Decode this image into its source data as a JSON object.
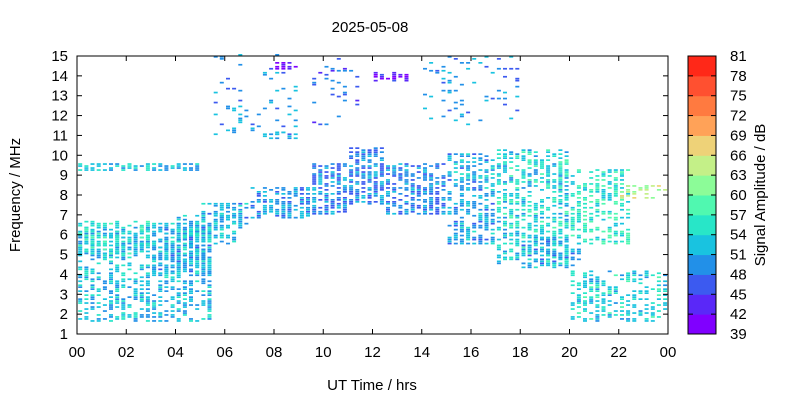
{
  "chart_data": {
    "type": "heatmap",
    "title": "2025-05-08",
    "xlabel": "UT Time / hrs",
    "ylabel": "Frequency / MHz",
    "colorbar_label": "Signal Amplitude / dB",
    "xlim": [
      0,
      24
    ],
    "ylim": [
      1,
      15
    ],
    "x_tick_labels": [
      "00",
      "02",
      "04",
      "06",
      "08",
      "10",
      "12",
      "14",
      "16",
      "18",
      "20",
      "22",
      "00"
    ],
    "y_tick_labels": [
      "1",
      "2",
      "3",
      "4",
      "5",
      "6",
      "7",
      "8",
      "9",
      "10",
      "11",
      "12",
      "13",
      "14",
      "15"
    ],
    "colorbar_ticks": [
      "39",
      "42",
      "45",
      "48",
      "51",
      "54",
      "57",
      "60",
      "63",
      "66",
      "69",
      "72",
      "75",
      "78",
      "81"
    ],
    "colorbar_colors": [
      "#8000ff",
      "#5a28f8",
      "#3c5af0",
      "#2290e8",
      "#19c3e0",
      "#28e6c8",
      "#50f8b0",
      "#8cfc98",
      "#c4f088",
      "#eed278",
      "#ffa258",
      "#ff7a40",
      "#ff5030",
      "#ff2818"
    ],
    "grid": false,
    "legend": "colorbar-right",
    "bands": [
      {
        "x": [
          0.0,
          5.5
        ],
        "y": [
          1.6,
          6.3
        ],
        "amp": 52,
        "density": 0.5
      },
      {
        "x": [
          0.0,
          3.0
        ],
        "y": [
          5.0,
          6.6
        ],
        "amp": 55,
        "density": 0.5
      },
      {
        "x": [
          3.0,
          5.5
        ],
        "y": [
          4.0,
          6.5
        ],
        "amp": 51,
        "density": 0.55
      },
      {
        "x": [
          4.0,
          6.5
        ],
        "y": [
          5.5,
          7.0
        ],
        "amp": 52,
        "density": 0.55
      },
      {
        "x": [
          5.0,
          7.0
        ],
        "y": [
          6.3,
          7.5
        ],
        "amp": 51,
        "density": 0.6
      },
      {
        "x": [
          7.0,
          9.5
        ],
        "y": [
          6.8,
          8.3
        ],
        "amp": 50,
        "density": 0.6
      },
      {
        "x": [
          9.5,
          11.0
        ],
        "y": [
          7.0,
          9.5
        ],
        "amp": 49,
        "density": 0.65
      },
      {
        "x": [
          11.0,
          12.5
        ],
        "y": [
          7.5,
          10.3
        ],
        "amp": 49,
        "density": 0.7
      },
      {
        "x": [
          12.5,
          15.0
        ],
        "y": [
          7.0,
          9.5
        ],
        "amp": 49,
        "density": 0.6
      },
      {
        "x": [
          15.0,
          17.0
        ],
        "y": [
          5.5,
          10.0
        ],
        "amp": 51,
        "density": 0.55
      },
      {
        "x": [
          17.0,
          20.0
        ],
        "y": [
          4.5,
          10.2
        ],
        "amp": 54,
        "density": 0.55
      },
      {
        "x": [
          20.0,
          22.5
        ],
        "y": [
          5.5,
          9.2
        ],
        "amp": 56,
        "density": 0.5
      },
      {
        "x": [
          18.0,
          20.5
        ],
        "y": [
          4.3,
          5.8
        ],
        "amp": 51,
        "density": 0.5
      },
      {
        "x": [
          20.0,
          24.0
        ],
        "y": [
          1.6,
          4.2
        ],
        "amp": 54,
        "density": 0.4
      },
      {
        "x": [
          0.0,
          4.8
        ],
        "y": [
          9.2,
          9.5
        ],
        "amp": 52,
        "density": 0.7
      },
      {
        "x": [
          22.0,
          24.0
        ],
        "y": [
          7.8,
          8.4
        ],
        "amp": 64,
        "density": 0.4
      },
      {
        "x": [
          8.0,
          9.0
        ],
        "y": [
          14.3,
          14.7
        ],
        "amp": 41,
        "density": 0.6
      },
      {
        "x": [
          12.0,
          13.5
        ],
        "y": [
          13.7,
          14.1
        ],
        "amp": 42,
        "density": 0.6
      },
      {
        "x": [
          7.5,
          8.8
        ],
        "y": [
          10.8,
          11.2
        ],
        "amp": 50,
        "density": 0.5
      },
      {
        "x": [
          9.5,
          11.5
        ],
        "y": [
          11.5,
          15.0
        ],
        "amp": 47,
        "density": 0.15
      },
      {
        "x": [
          14.0,
          18.0
        ],
        "y": [
          11.5,
          15.0
        ],
        "amp": 50,
        "density": 0.12
      },
      {
        "x": [
          5.5,
          9.0
        ],
        "y": [
          11.0,
          15.0
        ],
        "amp": 50,
        "density": 0.1
      }
    ]
  }
}
